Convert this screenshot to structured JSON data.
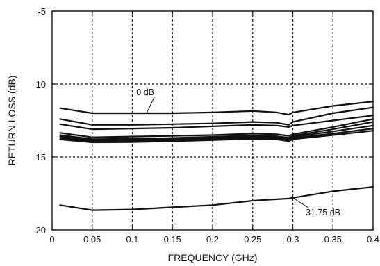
{
  "chart_data": {
    "type": "line",
    "title": "",
    "xlabel": "FREQUENCY (GHz)",
    "ylabel": "RETURN LOSS (dB)",
    "xlim": [
      0,
      0.4
    ],
    "ylim": [
      -20,
      -5
    ],
    "x_ticks": [
      0,
      0.05,
      0.1,
      0.15,
      0.2,
      0.25,
      0.3,
      0.35,
      0.4
    ],
    "x_tick_labels": [
      "0",
      "0.05",
      "0.1",
      "0.15",
      "0.2",
      "0.25",
      "0.3",
      "0.35",
      "0.4"
    ],
    "y_ticks": [
      -20,
      -15,
      -10,
      -5
    ],
    "y_tick_labels": [
      "-20",
      "-15",
      "-10",
      "-5"
    ],
    "grid": true,
    "grid_style": "dashed",
    "line_color": "#111111",
    "x": [
      0.01,
      0.05,
      0.1,
      0.15,
      0.2,
      0.25,
      0.28,
      0.295,
      0.3,
      0.35,
      0.4
    ],
    "series": [
      {
        "values": [
          -11.65,
          -12.0,
          -12.0,
          -12.0,
          -11.95,
          -11.85,
          -11.95,
          -12.1,
          -11.95,
          -11.5,
          -11.2
        ]
      },
      {
        "values": [
          -12.4,
          -12.8,
          -12.8,
          -12.75,
          -12.7,
          -12.6,
          -12.65,
          -12.8,
          -12.6,
          -12.0,
          -11.6
        ]
      },
      {
        "values": [
          -12.75,
          -13.1,
          -13.05,
          -13.0,
          -12.9,
          -12.8,
          -12.85,
          -12.95,
          -12.85,
          -12.5,
          -12.15
        ]
      },
      {
        "values": [
          -13.35,
          -13.65,
          -13.6,
          -13.55,
          -13.5,
          -13.4,
          -13.45,
          -13.55,
          -13.45,
          -12.95,
          -12.4
        ]
      },
      {
        "values": [
          -13.5,
          -13.78,
          -13.75,
          -13.7,
          -13.62,
          -13.52,
          -13.58,
          -13.68,
          -13.55,
          -13.1,
          -12.6
        ]
      },
      {
        "values": [
          -13.6,
          -13.85,
          -13.82,
          -13.78,
          -13.7,
          -13.6,
          -13.65,
          -13.75,
          -13.62,
          -13.25,
          -12.85
        ]
      },
      {
        "values": [
          -13.7,
          -13.92,
          -13.9,
          -13.85,
          -13.78,
          -13.68,
          -13.72,
          -13.85,
          -13.7,
          -13.4,
          -13.05
        ]
      },
      {
        "values": [
          -13.8,
          -14.0,
          -13.98,
          -13.92,
          -13.85,
          -13.75,
          -13.8,
          -13.92,
          -13.78,
          -13.5,
          -13.2
        ]
      },
      {
        "values": [
          -18.3,
          -18.65,
          -18.6,
          -18.45,
          -18.3,
          -18.0,
          -17.9,
          -17.85,
          -17.8,
          -17.35,
          -17.05
        ]
      }
    ],
    "annotations": [
      {
        "text": "0 dB",
        "x": 0.105,
        "y": -10.75,
        "target": [
          0.118,
          -11.97
        ],
        "anchor": "start"
      },
      {
        "text": "31.75 dB",
        "x": 0.316,
        "y": -19.0,
        "target": [
          0.3,
          -17.8
        ],
        "anchor": "start"
      }
    ]
  }
}
